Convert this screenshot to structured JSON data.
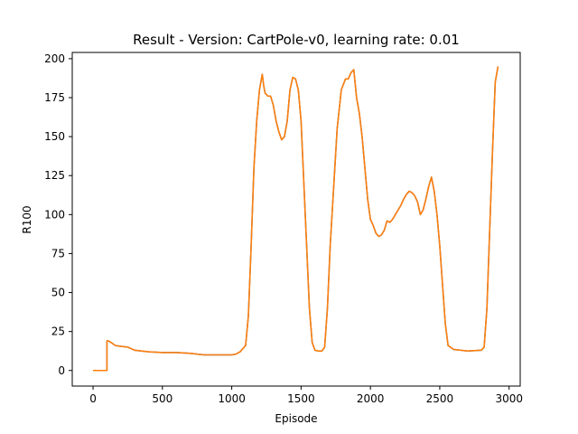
{
  "chart_data": {
    "type": "line",
    "title": "Result - Version: CartPole-v0, learning rate: 0.01",
    "xlabel": "Episode",
    "ylabel": "R100",
    "xlim": [
      -150,
      3080
    ],
    "ylim": [
      -10,
      204
    ],
    "xticks": [
      0,
      500,
      1000,
      1500,
      2000,
      2500,
      3000
    ],
    "yticks": [
      0,
      25,
      50,
      75,
      100,
      125,
      150,
      175,
      200
    ],
    "grid": false,
    "legend": "none",
    "series": [
      {
        "color": "#ff7f0e",
        "shadow_color": "#1f77b4",
        "points": [
          [
            0,
            0
          ],
          [
            100,
            0
          ],
          [
            100,
            19
          ],
          [
            110,
            19
          ],
          [
            130,
            18
          ],
          [
            160,
            16
          ],
          [
            200,
            15.5
          ],
          [
            250,
            15
          ],
          [
            300,
            13
          ],
          [
            400,
            12
          ],
          [
            500,
            11.5
          ],
          [
            600,
            11.5
          ],
          [
            700,
            11
          ],
          [
            800,
            10
          ],
          [
            900,
            10
          ],
          [
            1000,
            10
          ],
          [
            1030,
            10.5
          ],
          [
            1060,
            12
          ],
          [
            1100,
            16
          ],
          [
            1120,
            35
          ],
          [
            1140,
            80
          ],
          [
            1160,
            130
          ],
          [
            1180,
            160
          ],
          [
            1200,
            180
          ],
          [
            1220,
            190
          ],
          [
            1230,
            183
          ],
          [
            1240,
            178
          ],
          [
            1260,
            176
          ],
          [
            1280,
            176
          ],
          [
            1300,
            170
          ],
          [
            1320,
            160
          ],
          [
            1340,
            153
          ],
          [
            1360,
            148
          ],
          [
            1380,
            150
          ],
          [
            1400,
            160
          ],
          [
            1420,
            180
          ],
          [
            1440,
            188
          ],
          [
            1460,
            187
          ],
          [
            1480,
            180
          ],
          [
            1500,
            160
          ],
          [
            1520,
            120
          ],
          [
            1540,
            80
          ],
          [
            1560,
            40
          ],
          [
            1580,
            18
          ],
          [
            1600,
            13
          ],
          [
            1620,
            12.5
          ],
          [
            1650,
            12.5
          ],
          [
            1670,
            15
          ],
          [
            1690,
            40
          ],
          [
            1710,
            80
          ],
          [
            1730,
            110
          ],
          [
            1760,
            155
          ],
          [
            1790,
            180
          ],
          [
            1820,
            187
          ],
          [
            1840,
            187
          ],
          [
            1860,
            191
          ],
          [
            1880,
            193
          ],
          [
            1900,
            175
          ],
          [
            1920,
            165
          ],
          [
            1940,
            150
          ],
          [
            1960,
            130
          ],
          [
            1980,
            110
          ],
          [
            2000,
            97
          ],
          [
            2020,
            93
          ],
          [
            2040,
            88
          ],
          [
            2060,
            86
          ],
          [
            2080,
            87
          ],
          [
            2100,
            90
          ],
          [
            2120,
            96
          ],
          [
            2140,
            95
          ],
          [
            2160,
            97
          ],
          [
            2180,
            100
          ],
          [
            2200,
            103
          ],
          [
            2220,
            106
          ],
          [
            2240,
            110
          ],
          [
            2260,
            113
          ],
          [
            2280,
            115
          ],
          [
            2300,
            114
          ],
          [
            2320,
            112
          ],
          [
            2340,
            108
          ],
          [
            2360,
            100
          ],
          [
            2380,
            103
          ],
          [
            2400,
            110
          ],
          [
            2420,
            118
          ],
          [
            2440,
            124
          ],
          [
            2460,
            115
          ],
          [
            2480,
            100
          ],
          [
            2500,
            80
          ],
          [
            2520,
            55
          ],
          [
            2540,
            30
          ],
          [
            2560,
            16
          ],
          [
            2600,
            13.5
          ],
          [
            2700,
            12.5
          ],
          [
            2800,
            13
          ],
          [
            2820,
            15
          ],
          [
            2840,
            40
          ],
          [
            2860,
            90
          ],
          [
            2880,
            140
          ],
          [
            2900,
            185
          ],
          [
            2920,
            195
          ]
        ]
      }
    ]
  }
}
